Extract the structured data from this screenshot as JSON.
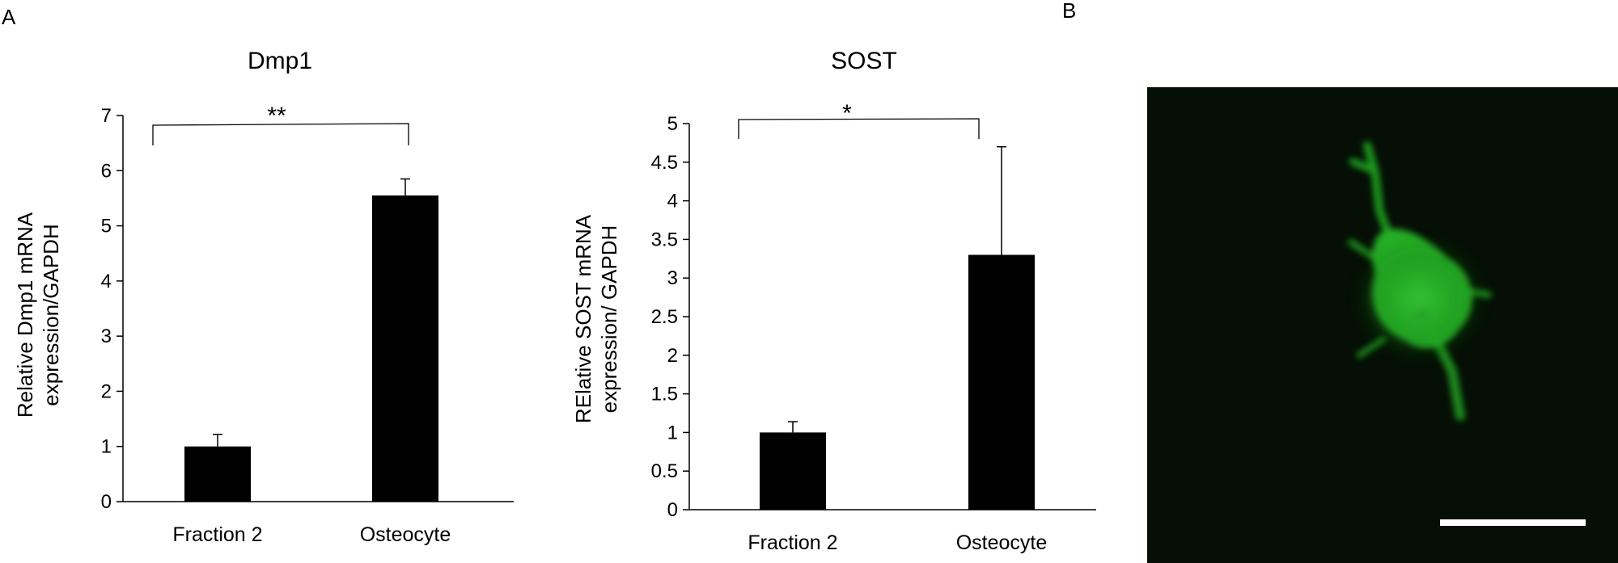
{
  "panels": {
    "a": "A",
    "b": "B"
  },
  "chart_data": [
    {
      "type": "bar",
      "title": "Dmp1",
      "categories": [
        "Fraction 2",
        "Osteocyte"
      ],
      "values": [
        1.0,
        5.55
      ],
      "error_upper": [
        0.22,
        0.3
      ],
      "xlabel": "",
      "ylabel_lines": [
        "Relative Dmp1 mRNA",
        "expression/GAPDH"
      ],
      "ylim": [
        0,
        7
      ],
      "ytick_labels": [
        "0",
        "1",
        "2",
        "3",
        "4",
        "5",
        "6",
        "7"
      ],
      "significance": "**",
      "grid": false,
      "bar_color": "#000000"
    },
    {
      "type": "bar",
      "title": "SOST",
      "categories": [
        "Fraction 2",
        "Osteocyte"
      ],
      "values": [
        1.0,
        3.3
      ],
      "error_upper": [
        0.14,
        1.4
      ],
      "xlabel": "",
      "ylabel_lines": [
        "RElative SOST mRNA",
        "expression/ GAPDH"
      ],
      "ylim": [
        0,
        5
      ],
      "ytick_labels": [
        "0",
        "0.5",
        "1",
        "1.5",
        "2",
        "2.5",
        "3",
        "3.5",
        "4",
        "4.5",
        "5"
      ],
      "significance": "*",
      "grid": false,
      "bar_color": "#000000"
    }
  ],
  "micrograph": {
    "description_icon": "fluorescence-cell-image",
    "background_color": "#050f05",
    "cell_color": "#2fc72f",
    "scale_bar_color": "#ffffff"
  }
}
